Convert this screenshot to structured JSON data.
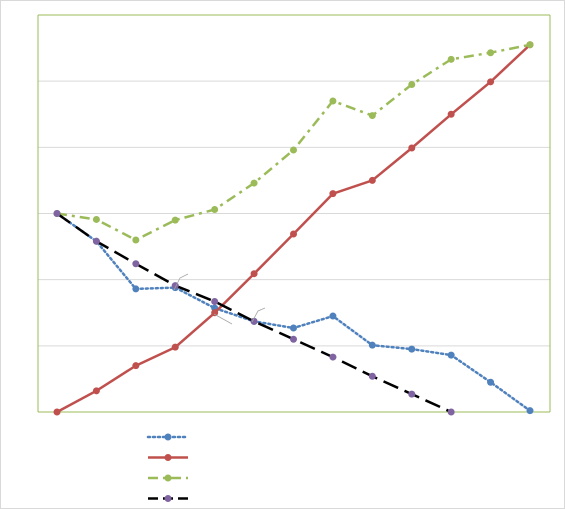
{
  "chart_data": {
    "type": "line",
    "x": [
      0,
      1,
      2,
      3,
      4,
      5,
      6,
      7,
      8,
      9,
      10,
      11,
      12
    ],
    "ylim": [
      0,
      6
    ],
    "grid": "horizontal",
    "legend_placement": "bottom-left",
    "axis_color": "#9bbb59",
    "gridline_color": "#d9d9d9",
    "series": [
      {
        "style": "dotted",
        "color": "#4f81bd",
        "marker": "circle",
        "values": [
          3.0,
          2.58,
          1.86,
          1.88,
          1.57,
          1.37,
          1.27,
          1.45,
          1.01,
          0.95,
          0.86,
          0.45,
          0.02
        ]
      },
      {
        "style": "solid",
        "color": "#c0504d",
        "marker": "circle",
        "values": [
          0.0,
          0.32,
          0.7,
          0.98,
          1.5,
          2.09,
          2.69,
          3.3,
          3.5,
          3.99,
          4.5,
          4.99,
          5.55
        ]
      },
      {
        "style": "dash-dot",
        "color": "#9bbb59",
        "marker": "circle",
        "values": [
          3.0,
          2.91,
          2.6,
          2.9,
          3.06,
          3.46,
          3.96,
          4.7,
          4.48,
          4.95,
          5.33,
          5.43,
          5.55
        ]
      },
      {
        "style": "long-dash",
        "color": "#000000",
        "marker": "circle",
        "marker_color": "#8064a2",
        "values": [
          3.0,
          2.58,
          2.24,
          1.91,
          1.67,
          1.37,
          1.1,
          0.83,
          0.54,
          0.27,
          0.0,
          null,
          null
        ]
      }
    ]
  }
}
